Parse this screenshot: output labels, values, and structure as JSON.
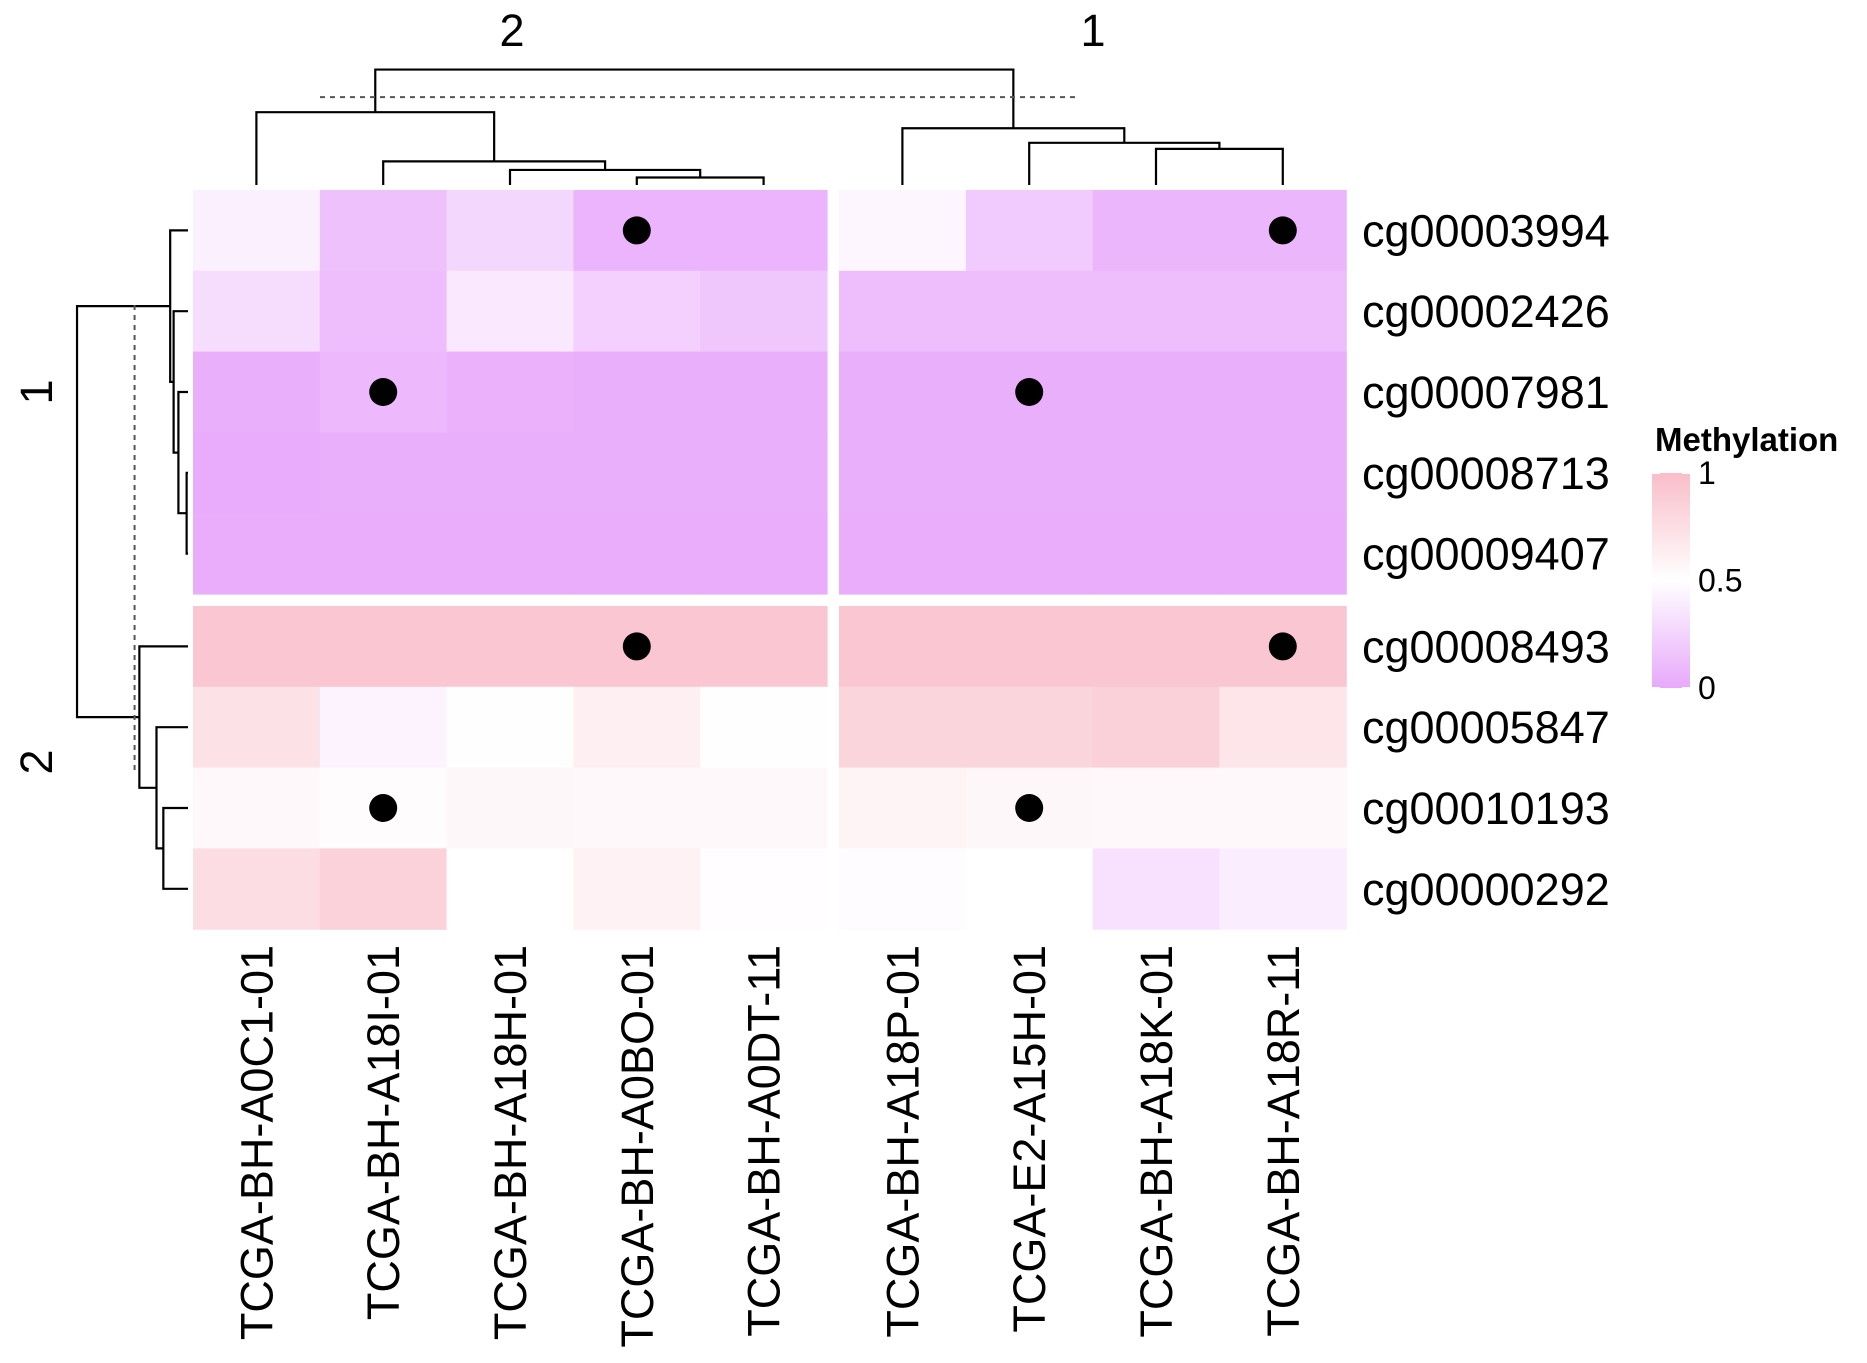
{
  "chart_data": {
    "type": "heatmap",
    "legend": {
      "title": "Methylation",
      "ticks": [
        "1",
        "0.5",
        "0"
      ],
      "tick_values": [
        1,
        0.5,
        0
      ],
      "placement": "right",
      "color_high": "#f9bdc9",
      "color_mid": "#ffffff",
      "color_low": "#e8a8fb"
    },
    "column_clusters": [
      "2",
      "1"
    ],
    "row_clusters": [
      "1",
      "2"
    ],
    "rows": [
      "cg00003994",
      "cg00002426",
      "cg00007981",
      "cg00008713",
      "cg00009407",
      "cg00008493",
      "cg00005847",
      "cg00010193",
      "cg00000292"
    ],
    "row_cluster_of": [
      0,
      0,
      0,
      0,
      0,
      1,
      1,
      1,
      1
    ],
    "columns": [
      "TCGA-BH-A0C1-01",
      "TCGA-BH-A18I-01",
      "TCGA-BH-A18H-01",
      "TCGA-BH-A0BO-01",
      "TCGA-BH-A0DT-11",
      "TCGA-BH-A18P-01",
      "TCGA-E2-A15H-01",
      "TCGA-BH-A18K-01",
      "TCGA-BH-A18R-11"
    ],
    "column_cluster_of": [
      0,
      0,
      0,
      0,
      0,
      1,
      1,
      1,
      1
    ],
    "values": [
      [
        0.42,
        0.14,
        0.27,
        0.07,
        0.07,
        0.45,
        0.2,
        0.08,
        0.08
      ],
      [
        0.3,
        0.12,
        0.37,
        0.23,
        0.18,
        0.12,
        0.12,
        0.12,
        0.12
      ],
      [
        0.04,
        0.1,
        0.06,
        0.04,
        0.04,
        0.04,
        0.04,
        0.04,
        0.04
      ],
      [
        0.02,
        0.04,
        0.04,
        0.04,
        0.04,
        0.04,
        0.04,
        0.04,
        0.04
      ],
      [
        0.03,
        0.03,
        0.03,
        0.03,
        0.03,
        0.03,
        0.03,
        0.03,
        0.03
      ],
      [
        0.93,
        0.93,
        0.93,
        0.93,
        0.93,
        0.93,
        0.93,
        0.93,
        0.93
      ],
      [
        0.73,
        0.43,
        0.51,
        0.62,
        0.51,
        0.82,
        0.82,
        0.85,
        0.7
      ],
      [
        0.55,
        0.52,
        0.56,
        0.55,
        0.55,
        0.58,
        0.56,
        0.55,
        0.55
      ],
      [
        0.76,
        0.84,
        0.5,
        0.6,
        0.49,
        0.48,
        0.5,
        0.33,
        0.4
      ]
    ],
    "markers": [
      [
        0,
        3
      ],
      [
        0,
        8
      ],
      [
        2,
        1
      ],
      [
        2,
        6
      ],
      [
        5,
        3
      ],
      [
        5,
        8
      ],
      [
        7,
        1
      ],
      [
        7,
        6
      ]
    ],
    "column_dendrogram_merges": [
      [
        3,
        4,
        0.15
      ],
      [
        2,
        9,
        0.3
      ],
      [
        1,
        10,
        0.47
      ],
      [
        7,
        8,
        0.72
      ],
      [
        6,
        12,
        0.84
      ],
      [
        5,
        13,
        1.13
      ],
      [
        0,
        11,
        1.45
      ],
      [
        14,
        15,
        2.3
      ]
    ],
    "row_dendrogram_merges": [
      [
        3,
        4,
        0.02
      ],
      [
        2,
        9,
        0.14
      ],
      [
        1,
        10,
        0.21
      ],
      [
        0,
        11,
        0.26
      ],
      [
        7,
        8,
        0.36
      ],
      [
        6,
        13,
        0.46
      ],
      [
        5,
        14,
        0.71
      ],
      [
        12,
        15,
        1.62
      ]
    ],
    "cut_height_columns": 1.75,
    "cut_height_rows": 0.78
  }
}
